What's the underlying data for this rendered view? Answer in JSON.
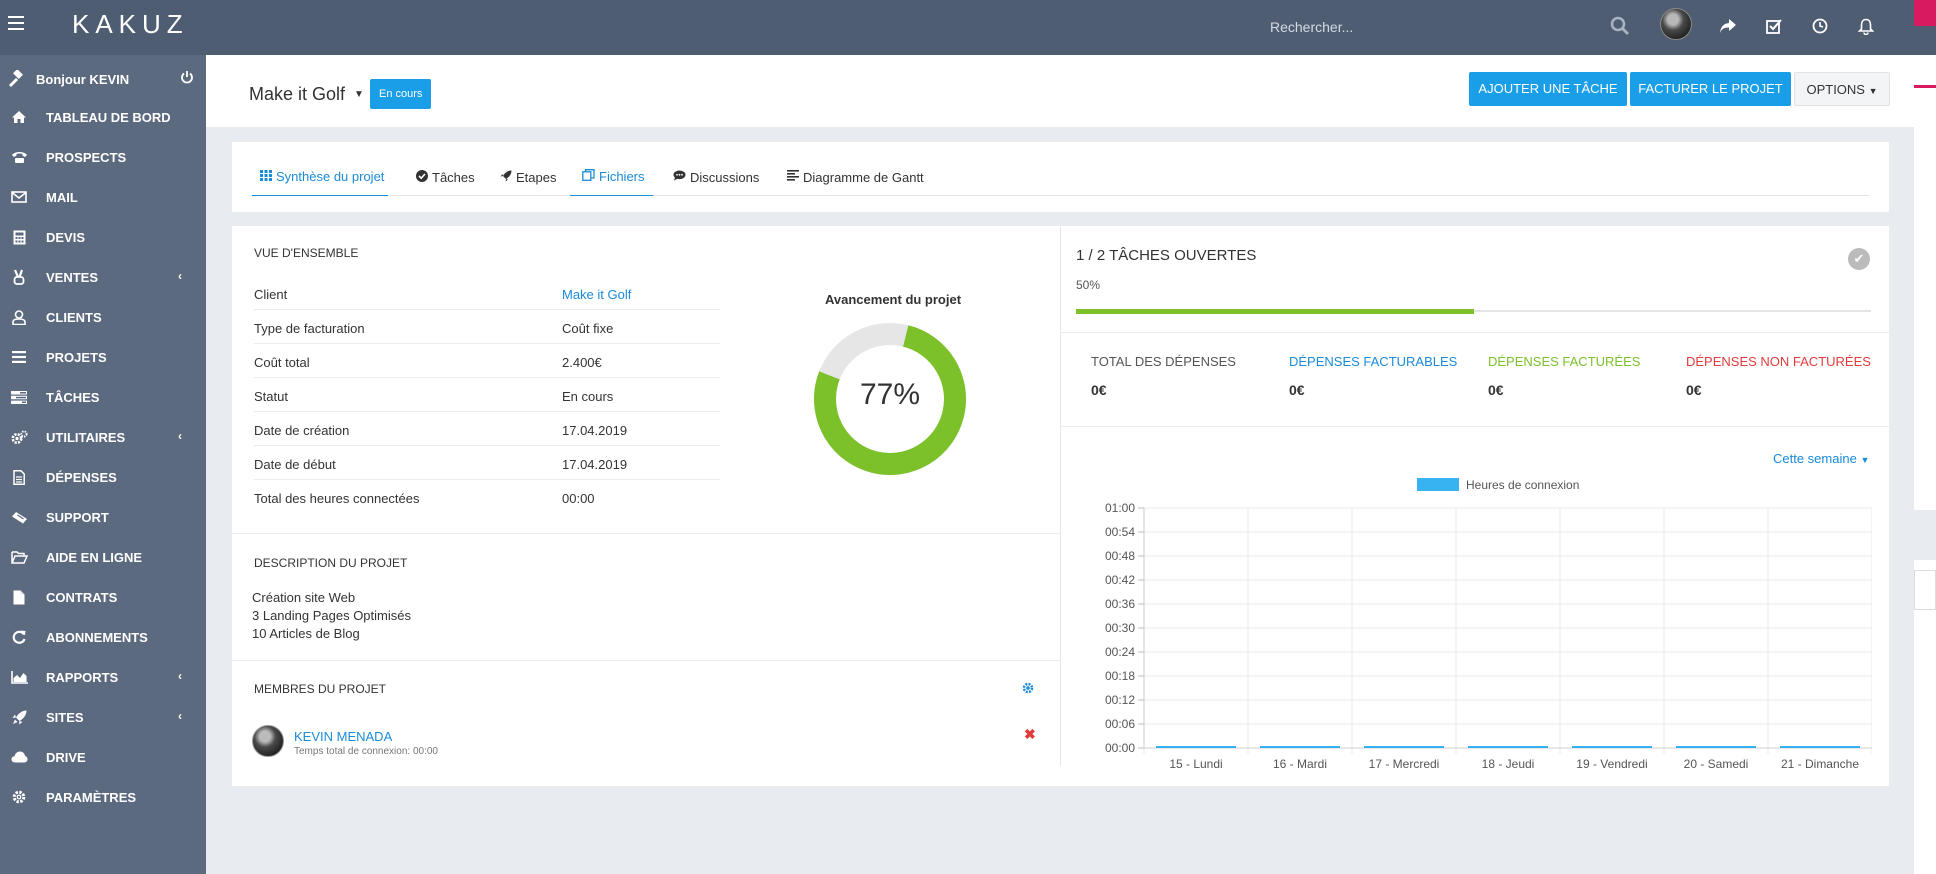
{
  "app": {
    "logo": "KAKUZ",
    "search_placeholder": "Rechercher..."
  },
  "top_icons": [
    "search-icon",
    "avatar",
    "share-icon",
    "check-square-icon",
    "clock-icon",
    "bell-icon"
  ],
  "sidebar": {
    "greeting": "Bonjour KEVIN",
    "items": [
      {
        "label": "TABLEAU DE BORD",
        "icon": "home-icon",
        "submenu": false
      },
      {
        "label": "PROSPECTS",
        "icon": "phone-icon",
        "submenu": false
      },
      {
        "label": "MAIL",
        "icon": "envelope-icon",
        "submenu": false
      },
      {
        "label": "DEVIS",
        "icon": "calculator-icon",
        "submenu": false
      },
      {
        "label": "VENTES",
        "icon": "victory-icon",
        "submenu": true
      },
      {
        "label": "CLIENTS",
        "icon": "user-icon",
        "submenu": false
      },
      {
        "label": "PROJETS",
        "icon": "bars-icon",
        "submenu": false
      },
      {
        "label": "TÂCHES",
        "icon": "tasks-icon",
        "submenu": false
      },
      {
        "label": "UTILITAIRES",
        "icon": "cogs-icon",
        "submenu": true
      },
      {
        "label": "DÉPENSES",
        "icon": "file-text-icon",
        "submenu": false
      },
      {
        "label": "SUPPORT",
        "icon": "ticket-icon",
        "submenu": false
      },
      {
        "label": "AIDE EN LIGNE",
        "icon": "folder-open-icon",
        "submenu": false
      },
      {
        "label": "CONTRATS",
        "icon": "file-icon",
        "submenu": false
      },
      {
        "label": "ABONNEMENTS",
        "icon": "refresh-icon",
        "submenu": false
      },
      {
        "label": "RAPPORTS",
        "icon": "area-chart-icon",
        "submenu": true
      },
      {
        "label": "SITES",
        "icon": "rocket-icon",
        "submenu": true
      },
      {
        "label": "DRIVE",
        "icon": "cloud-icon",
        "submenu": false
      },
      {
        "label": "PARAMÈTRES",
        "icon": "cog-icon",
        "submenu": false
      }
    ]
  },
  "header": {
    "project_name": "Make it Golf",
    "status": "En cours",
    "add_task": "AJOUTER UNE TÂCHE",
    "bill_project": "FACTURER LE PROJET",
    "options": "OPTIONS"
  },
  "tabs": [
    {
      "label": "Synthèse du projet",
      "icon": "grid-icon",
      "active": true
    },
    {
      "label": "Tâches",
      "icon": "check-circle-icon",
      "active": false
    },
    {
      "label": "Etapes",
      "icon": "rocket-icon",
      "active": false
    },
    {
      "label": "Fichiers",
      "icon": "files-icon",
      "active": true
    },
    {
      "label": "Discussions",
      "icon": "comment-icon",
      "active": false
    },
    {
      "label": "Diagramme de Gantt",
      "icon": "align-left-icon",
      "active": false
    }
  ],
  "overview": {
    "title": "VUE D'ENSEMBLE",
    "rows": [
      {
        "key": "Client",
        "value": "Make it Golf",
        "link": true
      },
      {
        "key": "Type de facturation",
        "value": "Coût fixe",
        "link": false
      },
      {
        "key": "Coût total",
        "value": "2.400€",
        "link": false
      },
      {
        "key": "Statut",
        "value": "En cours",
        "link": false
      },
      {
        "key": "Date de création",
        "value": "17.04.2019",
        "link": false
      },
      {
        "key": "Date de début",
        "value": "17.04.2019",
        "link": false
      },
      {
        "key": "Total des heures connectées",
        "value": "00:00",
        "link": false
      }
    ],
    "progress_title": "Avancement du projet",
    "progress_value": 77,
    "progress_text": "77%"
  },
  "description": {
    "title": "DESCRIPTION DU PROJET",
    "lines": [
      "Création site Web",
      "3 Landing Pages Optimisés",
      "10 Articles de Blog"
    ]
  },
  "members": {
    "title": "MEMBRES DU PROJET",
    "list": [
      {
        "name": "KEVIN MENADA",
        "sub": "Temps total de connexion: 00:00"
      }
    ]
  },
  "tasks": {
    "title": "1 / 2 TÂCHES OUVERTES",
    "percent_text": "50%",
    "percent": 50
  },
  "expenses": [
    {
      "label": "TOTAL DES DÉPENSES",
      "value": "0€",
      "color": "#555555"
    },
    {
      "label": "DÉPENSES FACTURABLES",
      "value": "0€",
      "color": "#1a8bd8"
    },
    {
      "label": "DÉPENSES FACTURÉES",
      "value": "0€",
      "color": "#7cc12a"
    },
    {
      "label": "DÉPENSES NON FACTURÉES",
      "value": "0€",
      "color": "#e03c3c"
    }
  ],
  "week_selector": "Cette semaine",
  "colors": {
    "topbar": "#4f5d73",
    "sidebar": "#5c6a80",
    "accent": "#1a9ee8",
    "progress_green": "#7cc12a",
    "bar_blue": "#36b3f0"
  },
  "chart_data": {
    "type": "bar",
    "legend": [
      "Heures de connexion"
    ],
    "categories": [
      "15 - Lundi",
      "16 - Mardi",
      "17 - Mercredi",
      "18 - Jeudi",
      "19 - Vendredi",
      "20 - Samedi",
      "21 - Dimanche"
    ],
    "series": [
      {
        "name": "Heures de connexion",
        "values": [
          0,
          0,
          0,
          0,
          0,
          0,
          0
        ]
      }
    ],
    "y_ticks": [
      "00:00",
      "00:06",
      "00:12",
      "00:18",
      "00:24",
      "00:30",
      "00:36",
      "00:42",
      "00:48",
      "00:54",
      "01:00"
    ],
    "ylim": [
      0,
      60
    ],
    "grid": true,
    "legend_position": "top"
  }
}
